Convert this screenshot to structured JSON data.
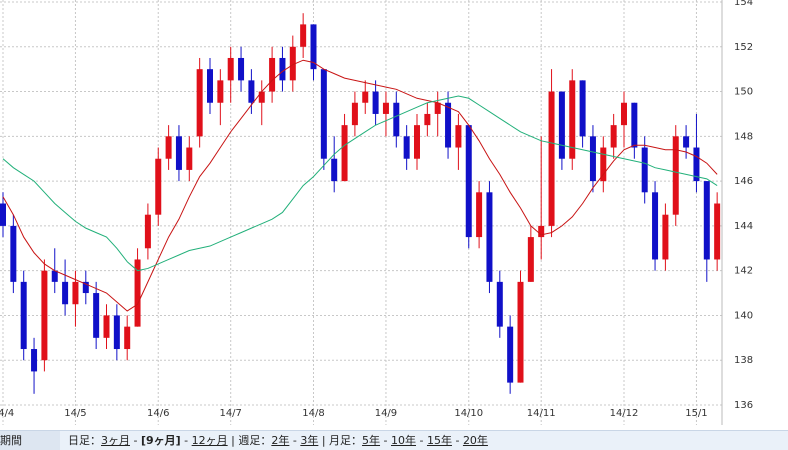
{
  "chart_data": {
    "type": "candlestick",
    "categories": [
      "14/4",
      null,
      null,
      null,
      null,
      null,
      null,
      "14/5",
      null,
      null,
      null,
      null,
      null,
      null,
      null,
      "14/6",
      null,
      null,
      null,
      null,
      null,
      null,
      "14/7",
      null,
      null,
      null,
      null,
      null,
      null,
      null,
      "14/8",
      null,
      null,
      null,
      null,
      null,
      null,
      "14/9",
      null,
      null,
      null,
      null,
      null,
      null,
      null,
      "14/10",
      null,
      null,
      null,
      null,
      null,
      null,
      "14/11",
      null,
      null,
      null,
      null,
      null,
      null,
      null,
      "14/12",
      null,
      null,
      null,
      null,
      null,
      null,
      "15/1",
      null,
      null
    ],
    "open": [
      145,
      144,
      141.5,
      138.5,
      138,
      142,
      141.5,
      140.5,
      141.5,
      141,
      139,
      140,
      138.5,
      139.5,
      143,
      144.5,
      147,
      148,
      146.5,
      148,
      151,
      149.5,
      150.5,
      151.5,
      150.5,
      149.5,
      150,
      151.5,
      150.5,
      152,
      153,
      151,
      147,
      146,
      148.5,
      149.5,
      150,
      149,
      149.5,
      148,
      147,
      148.5,
      149,
      149.5,
      147.5,
      148.5,
      143.5,
      145.5,
      141.5,
      139.5,
      137,
      141.5,
      143.5,
      144,
      150,
      147,
      150.5,
      148,
      146,
      147.5,
      148.5,
      149.5,
      147.5,
      145.5,
      142.5,
      144.5,
      148,
      147.5,
      146,
      142.5
    ],
    "high": [
      145.5,
      144.5,
      142,
      139,
      142.5,
      143,
      142.5,
      142,
      142,
      141.5,
      140.5,
      140.5,
      140,
      143,
      145,
      147.5,
      148.5,
      148.5,
      148,
      151.5,
      151.5,
      151,
      152,
      152,
      151,
      150.5,
      152,
      152,
      152.5,
      153.5,
      153,
      151,
      148,
      149,
      150,
      150.5,
      150.5,
      150,
      150,
      148.5,
      149,
      149.5,
      150,
      150,
      149,
      148.5,
      146,
      146,
      142,
      140,
      142,
      144,
      148,
      151,
      150,
      151,
      150.5,
      148.5,
      148,
      149,
      150,
      149.5,
      148,
      146,
      145,
      148.5,
      148.5,
      149,
      146,
      145.5
    ],
    "low": [
      143.5,
      141,
      138,
      136.5,
      137.5,
      141,
      140,
      139.5,
      140.5,
      138.5,
      138.5,
      138,
      138,
      139.5,
      142.5,
      144,
      146.5,
      146,
      146,
      147.5,
      149,
      148.5,
      149.5,
      150,
      149,
      148.5,
      149.5,
      150,
      150,
      151.5,
      150.5,
      146.5,
      145.5,
      146,
      148,
      149,
      148.5,
      148,
      147.5,
      146.5,
      146.5,
      148,
      148,
      147,
      146.5,
      143,
      143,
      141,
      139,
      136.5,
      137,
      141.5,
      142.5,
      143.5,
      146.5,
      146.5,
      147.5,
      145.5,
      145.5,
      147,
      147.5,
      147,
      145,
      142,
      142,
      144,
      147,
      145.5,
      141.5,
      142
    ],
    "close": [
      144,
      141.5,
      138.5,
      137.5,
      142,
      141.5,
      140.5,
      141.5,
      141,
      139,
      140,
      138.5,
      139.5,
      142.5,
      144.5,
      147,
      148,
      146.5,
      147.5,
      151,
      149.5,
      150.5,
      151.5,
      150.5,
      149.5,
      150,
      151.5,
      150.5,
      152,
      153,
      151,
      147,
      146,
      148.5,
      149.5,
      150,
      149,
      149.5,
      148,
      147,
      148.5,
      149,
      149.5,
      147.5,
      148.5,
      143.5,
      145.5,
      141.5,
      139.5,
      137,
      141.5,
      143.5,
      144,
      150,
      147,
      150.5,
      148,
      146,
      147.5,
      148.5,
      149.5,
      147.5,
      145.5,
      142.5,
      144.5,
      148,
      147.5,
      146,
      142.5,
      145
    ],
    "up_color": "#e0101a",
    "down_color": "#1010c8",
    "series": [
      {
        "color": "#c81414",
        "values": [
          145.3,
          144.5,
          143.5,
          142.8,
          142.3,
          142,
          141.8,
          141.6,
          141.4,
          141.2,
          141,
          140.6,
          140.2,
          140.5,
          141.5,
          142.5,
          143.5,
          144.3,
          145.3,
          146.2,
          146.8,
          147.5,
          148.2,
          148.8,
          149.4,
          150,
          150.5,
          150.9,
          151.2,
          151.4,
          151.3,
          151,
          150.8,
          150.6,
          150.5,
          150.4,
          150.3,
          150.2,
          150.1,
          149.9,
          149.7,
          149.6,
          149.5,
          149.3,
          149.1,
          148.5,
          147.8,
          147,
          146.3,
          145.5,
          144.8,
          144,
          143.6,
          143.7,
          144,
          144.4,
          145,
          145.7,
          146.3,
          146.9,
          147.4,
          147.6,
          147.6,
          147.5,
          147.4,
          147.4,
          147.3,
          147.1,
          146.8,
          146.3
        ]
      },
      {
        "color": "#22b07a",
        "values": [
          147,
          146.6,
          146.3,
          146,
          145.5,
          145,
          144.6,
          144.2,
          143.9,
          143.7,
          143.5,
          143,
          142.4,
          142,
          142.1,
          142.3,
          142.5,
          142.7,
          142.9,
          143,
          143.1,
          143.3,
          143.5,
          143.7,
          143.9,
          144.1,
          144.3,
          144.6,
          145.2,
          145.8,
          146.2,
          146.7,
          147.2,
          147.6,
          147.9,
          148.2,
          148.5,
          148.7,
          148.9,
          149.1,
          149.3,
          149.5,
          149.6,
          149.7,
          149.8,
          149.7,
          149.4,
          149.1,
          148.8,
          148.5,
          148.2,
          148,
          147.8,
          147.7,
          147.6,
          147.5,
          147.4,
          147.3,
          147.2,
          147.1,
          147,
          146.9,
          146.8,
          146.6,
          146.5,
          146.4,
          146.3,
          146.2,
          146.1,
          145.8
        ]
      }
    ],
    "ylim": [
      136,
      154
    ],
    "yticks": [
      136,
      138,
      140,
      142,
      144,
      146,
      148,
      150,
      152,
      154
    ],
    "grid": true
  },
  "footer": {
    "label": "期間",
    "items": [
      {
        "text": "日足："
      },
      {
        "text": "3ヶ月",
        "link": true
      },
      {
        "text": " - "
      },
      {
        "text": "[9ヶ月]",
        "bold": true
      },
      {
        "text": " - "
      },
      {
        "text": "12ヶ月",
        "link": true
      },
      {
        "text": " | 週足："
      },
      {
        "text": "2年",
        "link": true
      },
      {
        "text": " - "
      },
      {
        "text": "3年",
        "link": true
      },
      {
        "text": " | 月足："
      },
      {
        "text": "5年",
        "link": true
      },
      {
        "text": " - "
      },
      {
        "text": "10年",
        "link": true
      },
      {
        "text": " - "
      },
      {
        "text": "15年",
        "link": true
      },
      {
        "text": " - "
      },
      {
        "text": "20年",
        "link": true
      }
    ]
  }
}
